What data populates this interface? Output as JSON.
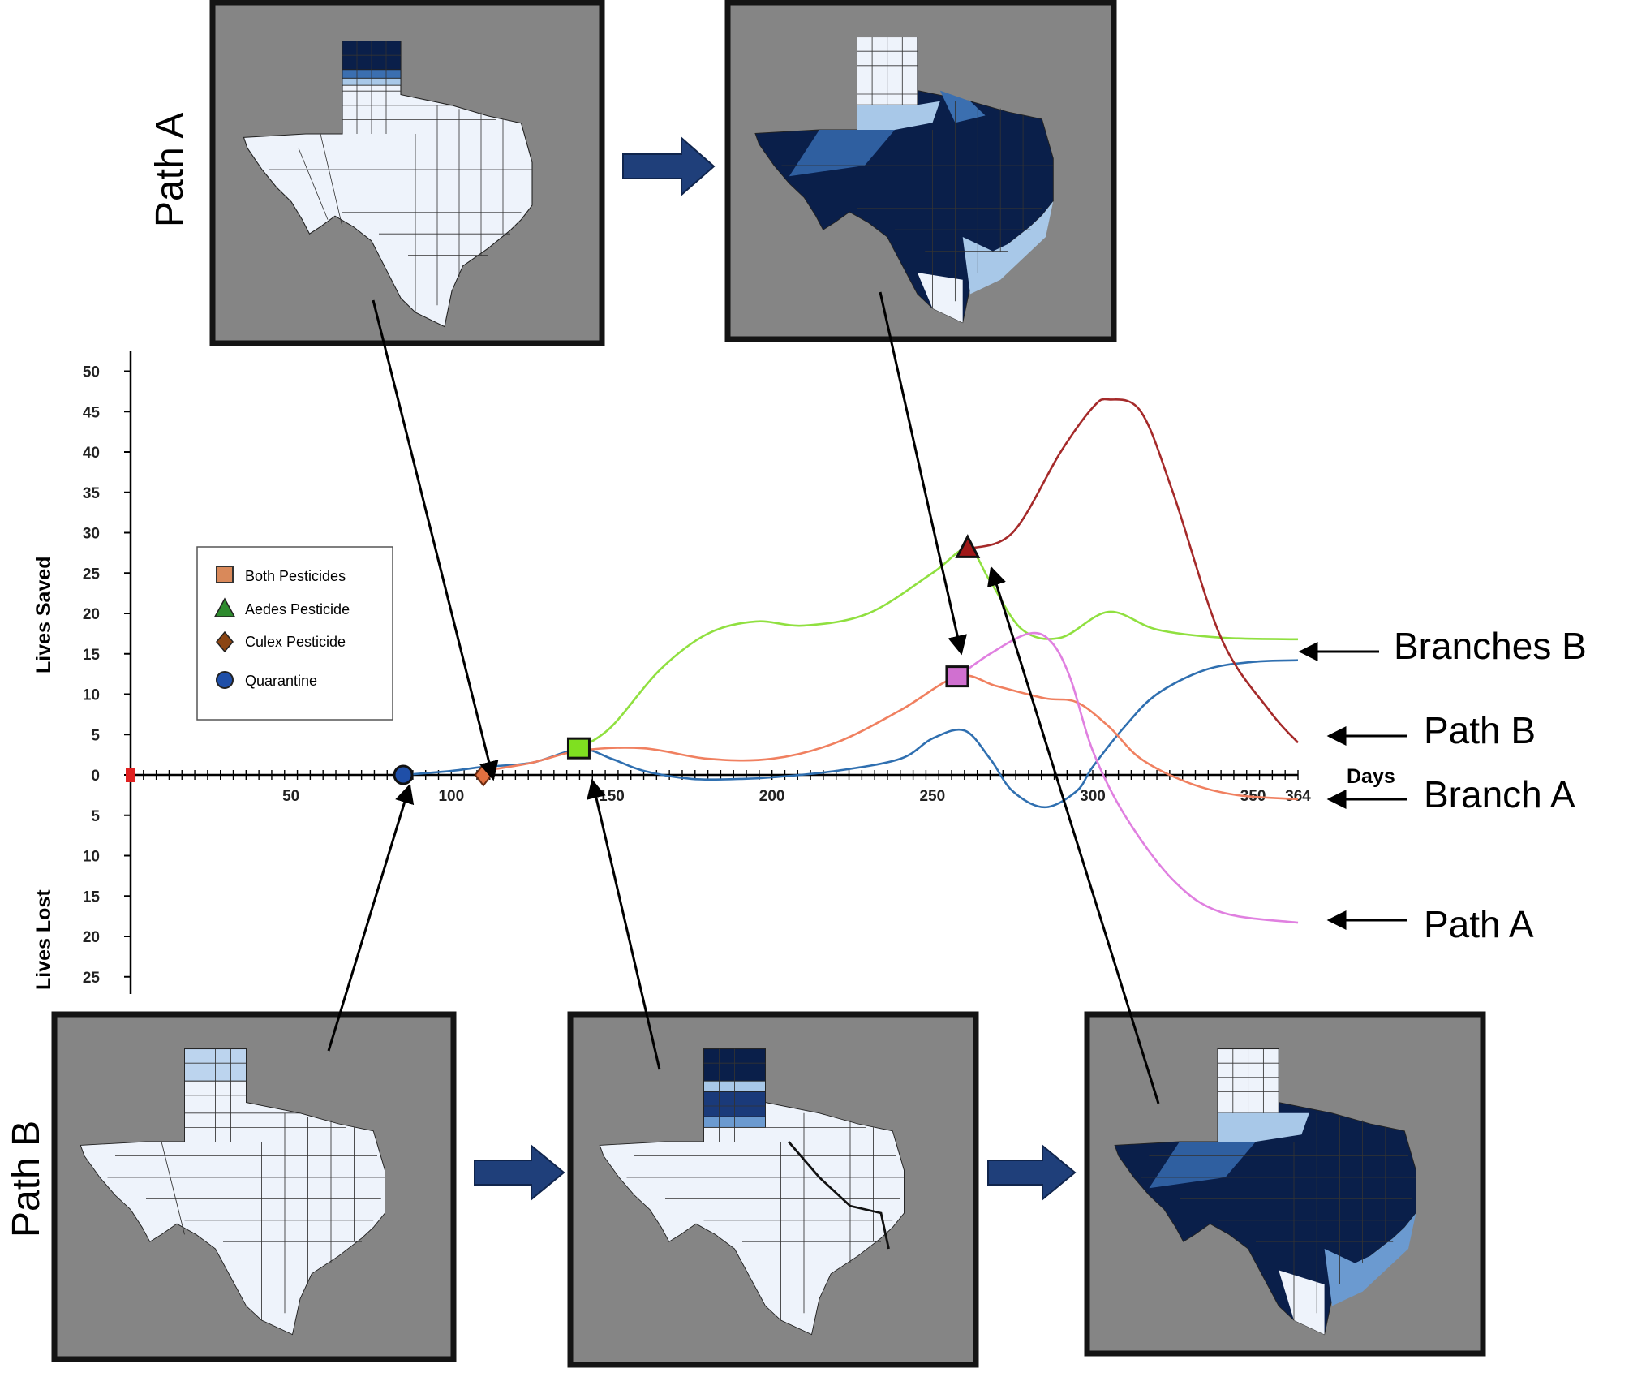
{
  "chart_data": {
    "type": "line",
    "ylabel_top": "Lives Saved",
    "ylabel_bottom": "Lives Lost",
    "xlabel": "Days",
    "xlim": [
      0,
      364
    ],
    "ylim": [
      -28,
      52
    ],
    "x_ticks": [
      50,
      100,
      150,
      200,
      250,
      300,
      350,
      364
    ],
    "x_tick_labels": [
      "50",
      "100",
      "150",
      "200",
      "250",
      "300",
      "350",
      "364"
    ],
    "y_ticks_saved": [
      0,
      5,
      10,
      15,
      20,
      25,
      30,
      35,
      40,
      45,
      50
    ],
    "y_ticks_lost": [
      5,
      10,
      15,
      20,
      25
    ],
    "legend": [
      {
        "label": "Both Pesticides",
        "marker": "square",
        "color": "#d9895a"
      },
      {
        "label": "Aedes Pesticide",
        "marker": "triangle",
        "color": "#2e8b2e"
      },
      {
        "label": "Culex Pesticide",
        "marker": "diamond",
        "color": "#8b4513"
      },
      {
        "label": "Quarantine",
        "marker": "circle",
        "color": "#1f4fa8"
      }
    ],
    "series": [
      {
        "color": "#2f6fb0",
        "x": [
          85,
          100,
          110,
          125,
          140,
          150,
          160,
          175,
          190,
          200,
          220,
          240,
          250,
          260,
          268,
          275,
          285,
          295,
          300,
          310,
          320,
          335,
          350,
          364
        ],
        "y": [
          0,
          0.5,
          1,
          1.5,
          3.2,
          2,
          0.5,
          -0.5,
          -0.5,
          -0.3,
          0.5,
          2,
          4.5,
          5.5,
          2,
          -2,
          -4,
          -2,
          1,
          6,
          10,
          13,
          14,
          14.2
        ]
      },
      {
        "color": "#f08060",
        "x": [
          110,
          125,
          140,
          160,
          180,
          200,
          220,
          240,
          258,
          270,
          285,
          295,
          305,
          315,
          330,
          345,
          364
        ],
        "y": [
          0.5,
          1.5,
          3,
          3.3,
          2,
          2,
          4,
          8,
          12.2,
          11,
          9.5,
          9,
          6,
          2,
          -1,
          -2.5,
          -3
        ]
      },
      {
        "color": "#90e040",
        "x": [
          140,
          150,
          165,
          180,
          195,
          210,
          230,
          250,
          261,
          268,
          278,
          290,
          305,
          320,
          340,
          364
        ],
        "y": [
          3.3,
          6,
          13,
          17.5,
          19,
          18.5,
          20,
          25,
          28,
          24,
          18,
          17,
          20.2,
          18,
          17,
          16.8
        ]
      },
      {
        "color": "#a52a2a",
        "x": [
          261,
          275,
          290,
          300,
          305,
          315,
          325,
          340,
          355,
          364
        ],
        "y": [
          28,
          30,
          40,
          45.5,
          46.5,
          45,
          35,
          17,
          8,
          4
        ]
      },
      {
        "color": "#e080e0",
        "x": [
          258,
          268,
          280,
          287,
          293,
          300,
          310,
          325,
          340,
          364
        ],
        "y": [
          12.2,
          15,
          17.5,
          16.5,
          12,
          3,
          -5,
          -13,
          -17,
          -18.3
        ]
      }
    ],
    "markers": [
      {
        "type": "quarantine",
        "x": 85,
        "y": 0
      },
      {
        "type": "culex",
        "x": 110,
        "y": 0
      },
      {
        "type": "both",
        "x": 140,
        "y": 3.3
      },
      {
        "type": "both",
        "x": 258,
        "y": 12.2
      },
      {
        "type": "aedes",
        "x": 261,
        "y": 28
      }
    ],
    "start_marker": {
      "x": 0,
      "y": 0
    }
  },
  "labels": {
    "path_a_top": "Path A",
    "path_b_left": "Path B",
    "right_branches_b": "Branches B",
    "right_path_b": "Path B",
    "right_branch_a": "Branch A",
    "right_path_a": "Path A"
  },
  "colors": {
    "panel_bg": "#858585",
    "flow_arrow": "#1f3f7a"
  }
}
